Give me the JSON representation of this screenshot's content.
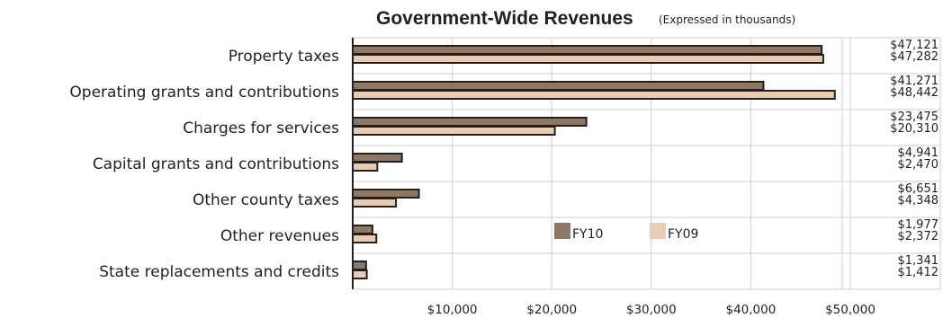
{
  "chart_data": {
    "type": "bar",
    "orientation": "horizontal",
    "title": "Government-Wide Revenues",
    "subtitle": "(Expressed in thousands)",
    "categories": [
      "Property taxes",
      "Operating grants and contributions",
      "Charges for services",
      "Capital grants and contributions",
      "Other county taxes",
      "Other revenues",
      "State replacements and credits"
    ],
    "series": [
      {
        "name": "FY10",
        "color": "#8c7864",
        "values": [
          47121,
          41271,
          23475,
          4941,
          6651,
          1977,
          1341
        ],
        "value_labels": [
          "$47,121",
          "$41,271",
          "$23,475",
          "$4,941",
          "$6,651",
          "$1,977",
          "$1,341"
        ]
      },
      {
        "name": "FY09",
        "color": "#e6cdb4",
        "values": [
          47282,
          48442,
          20310,
          2470,
          4348,
          2372,
          1412
        ],
        "value_labels": [
          "$47,282",
          "$48,442",
          "$20,310",
          "$2,470",
          "$4,348",
          "$2,372",
          "$1,412"
        ]
      }
    ],
    "x_ticks": [
      10000,
      20000,
      30000,
      40000,
      50000
    ],
    "x_tick_labels": [
      "$10,000",
      "$20,000",
      "$30,000",
      "$40,000",
      "$50,000"
    ],
    "xlim": [
      0,
      50000
    ],
    "grid": true,
    "legend": "inside-bottom-center"
  }
}
